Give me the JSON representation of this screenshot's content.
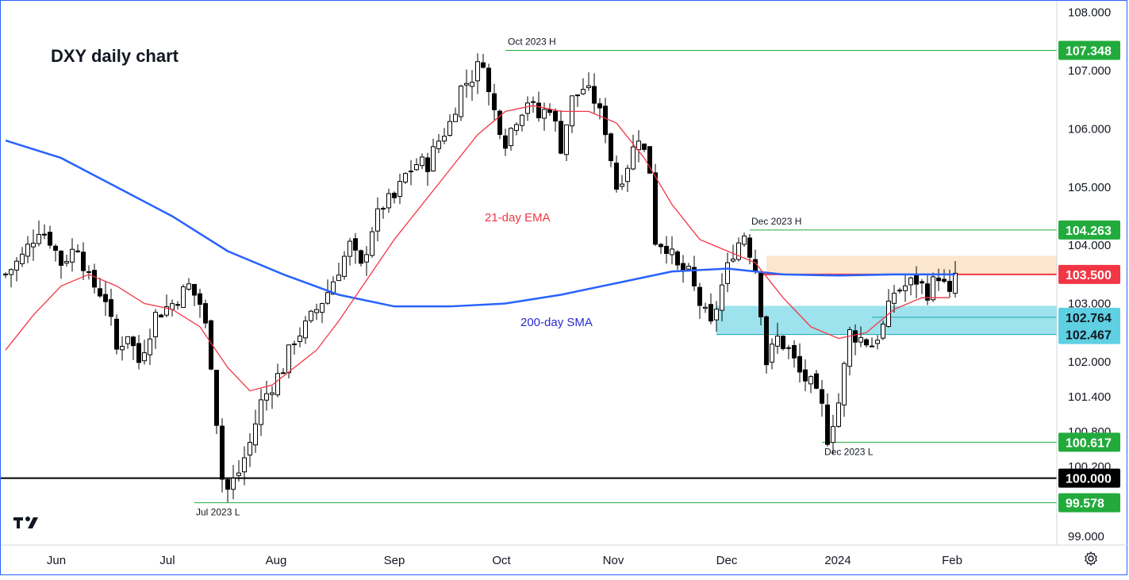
{
  "chart_data": {
    "type": "candlestick",
    "title": "DXY daily chart",
    "y_axis": {
      "ticks": [
        "108.000",
        "107.000",
        "106.000",
        "105.000",
        "104.000",
        "103.000",
        "102.000",
        "101.400",
        "100.800",
        "100.200",
        "99.000"
      ],
      "range": [
        98.85,
        108.2
      ]
    },
    "x_axis": {
      "ticks": [
        "Jun",
        "Jul",
        "Aug",
        "Sep",
        "Oct",
        "Nov",
        "Dec",
        "2024",
        "Feb"
      ]
    },
    "price_labels": [
      {
        "value": "107.348",
        "color": "#22ab3c"
      },
      {
        "value": "104.263",
        "color": "#22ab3c"
      },
      {
        "value": "103.500",
        "color": "#f23645"
      },
      {
        "value": "102.764",
        "color": "#5ed0e2"
      },
      {
        "value": "102.467",
        "color": "#5ed0e2"
      },
      {
        "value": "100.617",
        "color": "#22ab3c"
      },
      {
        "value": "100.000",
        "color": "#000000"
      },
      {
        "value": "99.578",
        "color": "#22ab3c"
      }
    ],
    "annotations": {
      "oct_high": "Oct 2023 H",
      "dec_high": "Dec 2023 H",
      "jul_low": "Jul 2023 L",
      "dec_low": "Dec 2023 L",
      "ema_label": "21-day EMA",
      "sma_label": "200-day SMA"
    },
    "levels": {
      "oct_high": 107.348,
      "dec_high": 104.263,
      "resistance": 103.5,
      "support_upper": 102.764,
      "support_lower": 102.467,
      "dec_low": 100.617,
      "psych": 100.0,
      "jul_low": 99.578,
      "resistance_zone": [
        103.5,
        103.82
      ],
      "support_zone": [
        102.467,
        102.96
      ]
    },
    "price_path": [
      [
        0,
        103.5
      ],
      [
        3,
        103.8
      ],
      [
        6,
        104.3
      ],
      [
        8,
        104.1
      ],
      [
        10,
        103.7
      ],
      [
        13,
        104.0
      ],
      [
        15,
        103.4
      ],
      [
        18,
        103.1
      ],
      [
        20,
        102.2
      ],
      [
        22,
        102.5
      ],
      [
        24,
        102.0
      ],
      [
        27,
        102.8
      ],
      [
        30,
        103.0
      ],
      [
        33,
        103.3
      ],
      [
        35,
        103.0
      ],
      [
        36,
        102.6
      ],
      [
        37,
        102.0
      ],
      [
        38,
        101.0
      ],
      [
        39,
        100.0
      ],
      [
        40,
        99.8
      ],
      [
        42,
        100.1
      ],
      [
        44,
        100.6
      ],
      [
        46,
        101.3
      ],
      [
        48,
        101.6
      ],
      [
        50,
        101.9
      ],
      [
        52,
        102.4
      ],
      [
        54,
        102.6
      ],
      [
        56,
        102.9
      ],
      [
        58,
        103.2
      ],
      [
        60,
        103.6
      ],
      [
        62,
        104.0
      ],
      [
        64,
        103.6
      ],
      [
        66,
        104.3
      ],
      [
        68,
        104.7
      ],
      [
        70,
        104.8
      ],
      [
        72,
        105.2
      ],
      [
        74,
        105.4
      ],
      [
        76,
        105.4
      ],
      [
        78,
        105.8
      ],
      [
        80,
        106.1
      ],
      [
        82,
        106.7
      ],
      [
        84,
        106.9
      ],
      [
        86,
        107.2
      ],
      [
        87,
        106.6
      ],
      [
        88,
        106.3
      ],
      [
        90,
        105.8
      ],
      [
        92,
        106.2
      ],
      [
        94,
        106.5
      ],
      [
        96,
        106.2
      ],
      [
        98,
        106.4
      ],
      [
        100,
        105.7
      ],
      [
        102,
        106.5
      ],
      [
        104,
        106.7
      ],
      [
        106,
        106.5
      ],
      [
        108,
        106.0
      ],
      [
        110,
        105.0
      ],
      [
        112,
        105.4
      ],
      [
        114,
        105.9
      ],
      [
        116,
        105.3
      ],
      [
        117,
        104.1
      ],
      [
        119,
        104.0
      ],
      [
        121,
        103.6
      ],
      [
        123,
        103.5
      ],
      [
        125,
        103.0
      ],
      [
        127,
        102.6
      ],
      [
        129,
        103.3
      ],
      [
        131,
        103.9
      ],
      [
        133,
        104.2
      ],
      [
        135,
        103.6
      ],
      [
        136,
        102.9
      ],
      [
        137,
        102.0
      ],
      [
        139,
        102.4
      ],
      [
        141,
        102.2
      ],
      [
        143,
        101.8
      ],
      [
        145,
        101.6
      ],
      [
        147,
        101.2
      ],
      [
        148,
        100.7
      ],
      [
        150,
        101.3
      ],
      [
        152,
        102.5
      ],
      [
        154,
        102.4
      ],
      [
        156,
        102.3
      ],
      [
        158,
        102.6
      ],
      [
        160,
        103.2
      ],
      [
        162,
        103.3
      ],
      [
        164,
        103.4
      ],
      [
        166,
        103.2
      ],
      [
        168,
        103.5
      ],
      [
        170,
        103.1
      ],
      [
        171,
        103.5
      ]
    ],
    "sma_path": [
      [
        0,
        105.8
      ],
      [
        10,
        105.5
      ],
      [
        20,
        105.0
      ],
      [
        30,
        104.5
      ],
      [
        40,
        103.9
      ],
      [
        50,
        103.5
      ],
      [
        60,
        103.15
      ],
      [
        70,
        102.95
      ],
      [
        80,
        102.95
      ],
      [
        90,
        103.0
      ],
      [
        100,
        103.15
      ],
      [
        110,
        103.35
      ],
      [
        120,
        103.55
      ],
      [
        130,
        103.6
      ],
      [
        140,
        103.5
      ],
      [
        150,
        103.48
      ],
      [
        160,
        103.5
      ],
      [
        171,
        103.5
      ]
    ],
    "ema_path": [
      [
        0,
        102.2
      ],
      [
        5,
        102.8
      ],
      [
        10,
        103.3
      ],
      [
        15,
        103.5
      ],
      [
        20,
        103.3
      ],
      [
        25,
        103.0
      ],
      [
        30,
        102.9
      ],
      [
        35,
        102.6
      ],
      [
        40,
        101.9
      ],
      [
        44,
        101.5
      ],
      [
        48,
        101.6
      ],
      [
        52,
        101.9
      ],
      [
        56,
        102.2
      ],
      [
        60,
        102.7
      ],
      [
        65,
        103.4
      ],
      [
        70,
        104.1
      ],
      [
        75,
        104.7
      ],
      [
        80,
        105.3
      ],
      [
        85,
        105.9
      ],
      [
        90,
        106.3
      ],
      [
        95,
        106.4
      ],
      [
        100,
        106.3
      ],
      [
        105,
        106.3
      ],
      [
        110,
        106.1
      ],
      [
        115,
        105.5
      ],
      [
        120,
        104.7
      ],
      [
        125,
        104.1
      ],
      [
        130,
        103.9
      ],
      [
        135,
        103.7
      ],
      [
        140,
        103.1
      ],
      [
        145,
        102.6
      ],
      [
        150,
        102.4
      ],
      [
        155,
        102.5
      ],
      [
        160,
        102.9
      ],
      [
        165,
        103.1
      ],
      [
        170,
        103.1
      ]
    ],
    "grid": false,
    "legend": "none"
  },
  "icons": {
    "settings": "gear-icon",
    "logo": "tradingview-logo"
  }
}
